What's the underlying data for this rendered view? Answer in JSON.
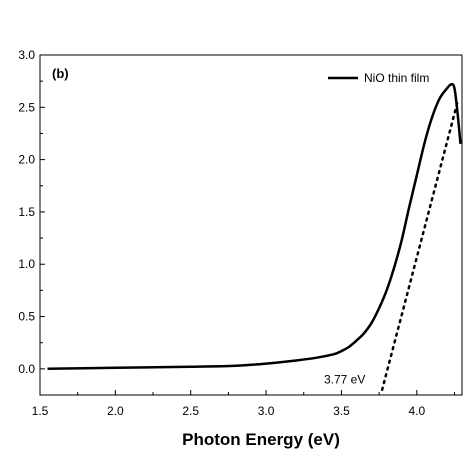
{
  "chart_data": {
    "type": "line",
    "panel_label": "(b)",
    "xlabel": "Photon Energy (eV)",
    "ylabel": "",
    "xlim": [
      1.5,
      4.3
    ],
    "ylim": [
      -0.25,
      3.0
    ],
    "x_ticks": [
      1.5,
      2.0,
      2.5,
      3.0,
      3.5,
      4.0
    ],
    "x_tick_labels": [
      "1.5",
      "2.0",
      "2.5",
      "3.0",
      "3.5",
      "4.0"
    ],
    "y_ticks": [
      0.0,
      0.5,
      1.0,
      1.5,
      2.0,
      2.5,
      3.0
    ],
    "y_tick_labels": [
      "0.0",
      "0.5",
      "1.0",
      "1.5",
      "2.0",
      "2.5",
      "3.0"
    ],
    "grid": false,
    "legend_position": "top-right",
    "series": [
      {
        "name": "NiO thin film",
        "color": "#000000",
        "x": [
          1.55,
          2.0,
          2.5,
          2.8,
          3.0,
          3.2,
          3.35,
          3.45,
          3.5,
          3.55,
          3.6,
          3.65,
          3.7,
          3.75,
          3.8,
          3.85,
          3.9,
          3.95,
          4.0,
          4.05,
          4.1,
          4.15,
          4.2,
          4.23,
          4.25,
          4.27,
          4.29
        ],
        "y": [
          0.0,
          0.01,
          0.02,
          0.03,
          0.05,
          0.08,
          0.11,
          0.14,
          0.17,
          0.21,
          0.27,
          0.34,
          0.44,
          0.58,
          0.75,
          0.97,
          1.23,
          1.55,
          1.85,
          2.15,
          2.4,
          2.58,
          2.68,
          2.72,
          2.68,
          2.45,
          2.15
        ]
      }
    ],
    "fit_line": {
      "style": "dotted",
      "color": "#000000",
      "x": [
        3.77,
        4.27
      ],
      "y": [
        -0.2,
        2.55
      ]
    },
    "annotations": [
      {
        "text": "3.77 eV",
        "x": 3.55,
        "y": -0.1
      }
    ]
  }
}
